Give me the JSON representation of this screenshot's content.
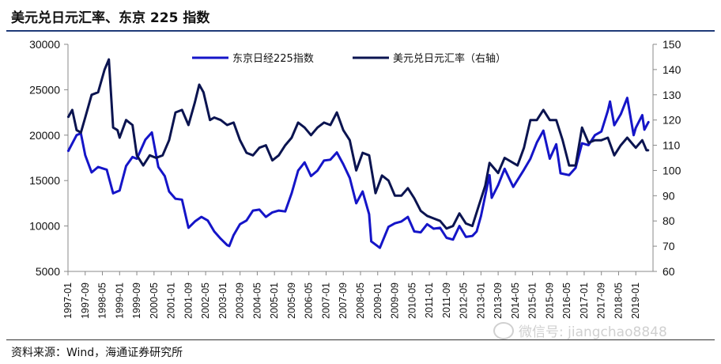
{
  "title": "美元兑日元汇率、东京 225 指数",
  "source": "资料来源：Wind，海通证券研究所",
  "watermark": "微信号: jiangchao8848",
  "colors": {
    "nikkei": "#1515c8",
    "usdjpy": "#0b1450",
    "rule": "#1f3a78"
  },
  "chart_data": {
    "type": "line",
    "title": "美元兑日元汇率、东京 225 指数",
    "x_ticks": [
      "1997-01",
      "1997-09",
      "1998-05",
      "1999-01",
      "1999-09",
      "2000-05",
      "2001-01",
      "2001-09",
      "2002-05",
      "2003-01",
      "2003-09",
      "2004-05",
      "2005-01",
      "2005-09",
      "2006-05",
      "2007-01",
      "2007-09",
      "2008-05",
      "2009-01",
      "2009-09",
      "2010-05",
      "2011-01",
      "2011-09",
      "2012-05",
      "2013-01",
      "2013-09",
      "2014-05",
      "2015-01",
      "2015-09",
      "2016-05",
      "2017-01",
      "2017-09",
      "2018-05",
      "2019-01"
    ],
    "y_left": {
      "ticks": [
        5000,
        10000,
        15000,
        20000,
        25000,
        30000
      ],
      "range": [
        5000,
        30000
      ]
    },
    "y_right": {
      "ticks": [
        60,
        70,
        80,
        90,
        100,
        110,
        120,
        130,
        140,
        150
      ],
      "range": [
        60,
        150
      ]
    },
    "legend_position": "top",
    "series": [
      {
        "name": "东京日经225指数",
        "axis": "left",
        "points": [
          [
            "1997-01",
            18200
          ],
          [
            "1997-05",
            20000
          ],
          [
            "1997-07",
            20200
          ],
          [
            "1997-09",
            17800
          ],
          [
            "1997-12",
            15900
          ],
          [
            "1998-03",
            16500
          ],
          [
            "1998-07",
            16200
          ],
          [
            "1998-10",
            13600
          ],
          [
            "1999-01",
            13900
          ],
          [
            "1999-04",
            16600
          ],
          [
            "1999-07",
            17600
          ],
          [
            "1999-09",
            17400
          ],
          [
            "2000-01",
            19500
          ],
          [
            "2000-04",
            20300
          ],
          [
            "2000-07",
            16500
          ],
          [
            "2000-10",
            15500
          ],
          [
            "2000-12",
            13800
          ],
          [
            "2001-03",
            13000
          ],
          [
            "2001-06",
            12900
          ],
          [
            "2001-09",
            9800
          ],
          [
            "2001-12",
            10500
          ],
          [
            "2002-03",
            11000
          ],
          [
            "2002-06",
            10600
          ],
          [
            "2002-09",
            9400
          ],
          [
            "2002-12",
            8600
          ],
          [
            "2003-03",
            7900
          ],
          [
            "2003-04",
            7800
          ],
          [
            "2003-06",
            9000
          ],
          [
            "2003-09",
            10200
          ],
          [
            "2003-12",
            10600
          ],
          [
            "2004-03",
            11700
          ],
          [
            "2004-06",
            11800
          ],
          [
            "2004-09",
            11000
          ],
          [
            "2004-12",
            11500
          ],
          [
            "2005-03",
            11700
          ],
          [
            "2005-06",
            11600
          ],
          [
            "2005-09",
            13600
          ],
          [
            "2005-12",
            16100
          ],
          [
            "2006-03",
            17000
          ],
          [
            "2006-06",
            15500
          ],
          [
            "2006-09",
            16100
          ],
          [
            "2006-12",
            17200
          ],
          [
            "2007-03",
            17300
          ],
          [
            "2007-06",
            18100
          ],
          [
            "2007-09",
            16800
          ],
          [
            "2007-12",
            15300
          ],
          [
            "2008-03",
            12500
          ],
          [
            "2008-06",
            13800
          ],
          [
            "2008-09",
            11300
          ],
          [
            "2008-10",
            8300
          ],
          [
            "2009-02",
            7600
          ],
          [
            "2009-06",
            9900
          ],
          [
            "2009-09",
            10300
          ],
          [
            "2009-12",
            10500
          ],
          [
            "2010-03",
            11000
          ],
          [
            "2010-06",
            9400
          ],
          [
            "2010-09",
            9300
          ],
          [
            "2010-12",
            10200
          ],
          [
            "2011-03",
            9700
          ],
          [
            "2011-06",
            9800
          ],
          [
            "2011-09",
            8700
          ],
          [
            "2011-12",
            8500
          ],
          [
            "2012-03",
            10000
          ],
          [
            "2012-06",
            8800
          ],
          [
            "2012-09",
            8900
          ],
          [
            "2012-11",
            9400
          ],
          [
            "2013-01",
            11100
          ],
          [
            "2013-05",
            15600
          ],
          [
            "2013-06",
            13100
          ],
          [
            "2013-09",
            14500
          ],
          [
            "2013-12",
            16300
          ],
          [
            "2014-04",
            14300
          ],
          [
            "2014-09",
            16200
          ],
          [
            "2014-12",
            17400
          ],
          [
            "2015-03",
            19200
          ],
          [
            "2015-06",
            20500
          ],
          [
            "2015-09",
            17400
          ],
          [
            "2015-12",
            19000
          ],
          [
            "2016-02",
            15800
          ],
          [
            "2016-06",
            15600
          ],
          [
            "2016-09",
            16400
          ],
          [
            "2016-12",
            19100
          ],
          [
            "2017-03",
            18900
          ],
          [
            "2017-06",
            20000
          ],
          [
            "2017-09",
            20400
          ],
          [
            "2017-12",
            22700
          ],
          [
            "2018-01",
            23700
          ],
          [
            "2018-03",
            21100
          ],
          [
            "2018-06",
            22300
          ],
          [
            "2018-09",
            24100
          ],
          [
            "2018-12",
            20000
          ],
          [
            "2019-01",
            20800
          ],
          [
            "2019-04",
            22200
          ],
          [
            "2019-05",
            20600
          ],
          [
            "2019-07",
            21500
          ]
        ]
      },
      {
        "name": "美元兑日元汇率（右轴）",
        "axis": "right",
        "points": [
          [
            "1997-01",
            121
          ],
          [
            "1997-03",
            124
          ],
          [
            "1997-05",
            116
          ],
          [
            "1997-07",
            115
          ],
          [
            "1997-09",
            121
          ],
          [
            "1997-12",
            130
          ],
          [
            "1998-03",
            131
          ],
          [
            "1998-06",
            140
          ],
          [
            "1998-08",
            144
          ],
          [
            "1998-10",
            117
          ],
          [
            "1998-12",
            116
          ],
          [
            "1999-01",
            113
          ],
          [
            "1999-04",
            120
          ],
          [
            "1999-07",
            118
          ],
          [
            "1999-09",
            106
          ],
          [
            "1999-12",
            102
          ],
          [
            "2000-03",
            106
          ],
          [
            "2000-06",
            105
          ],
          [
            "2000-09",
            106
          ],
          [
            "2000-12",
            112
          ],
          [
            "2001-03",
            123
          ],
          [
            "2001-06",
            124
          ],
          [
            "2001-09",
            118
          ],
          [
            "2001-12",
            127
          ],
          [
            "2002-02",
            134
          ],
          [
            "2002-04",
            131
          ],
          [
            "2002-07",
            120
          ],
          [
            "2002-09",
            121
          ],
          [
            "2002-12",
            120
          ],
          [
            "2003-03",
            118
          ],
          [
            "2003-06",
            119
          ],
          [
            "2003-09",
            112
          ],
          [
            "2003-12",
            107
          ],
          [
            "2004-03",
            106
          ],
          [
            "2004-06",
            109
          ],
          [
            "2004-09",
            110
          ],
          [
            "2004-12",
            104
          ],
          [
            "2005-03",
            106
          ],
          [
            "2005-06",
            110
          ],
          [
            "2005-09",
            113
          ],
          [
            "2005-12",
            119
          ],
          [
            "2006-03",
            117
          ],
          [
            "2006-06",
            114
          ],
          [
            "2006-09",
            117
          ],
          [
            "2006-12",
            119
          ],
          [
            "2007-03",
            118
          ],
          [
            "2007-06",
            123
          ],
          [
            "2007-09",
            116
          ],
          [
            "2007-12",
            112
          ],
          [
            "2008-03",
            100
          ],
          [
            "2008-06",
            107
          ],
          [
            "2008-09",
            106
          ],
          [
            "2008-12",
            91
          ],
          [
            "2009-03",
            98
          ],
          [
            "2009-06",
            96
          ],
          [
            "2009-09",
            90
          ],
          [
            "2009-12",
            90
          ],
          [
            "2010-03",
            93
          ],
          [
            "2010-06",
            89
          ],
          [
            "2010-09",
            84
          ],
          [
            "2010-12",
            82
          ],
          [
            "2011-03",
            81
          ],
          [
            "2011-06",
            80
          ],
          [
            "2011-09",
            77
          ],
          [
            "2011-12",
            78
          ],
          [
            "2012-03",
            83
          ],
          [
            "2012-06",
            79
          ],
          [
            "2012-09",
            78
          ],
          [
            "2012-12",
            86
          ],
          [
            "2013-03",
            94
          ],
          [
            "2013-05",
            103
          ],
          [
            "2013-09",
            99
          ],
          [
            "2013-12",
            105
          ],
          [
            "2014-06",
            102
          ],
          [
            "2014-09",
            109
          ],
          [
            "2014-12",
            120
          ],
          [
            "2015-03",
            120
          ],
          [
            "2015-06",
            124
          ],
          [
            "2015-09",
            120
          ],
          [
            "2015-12",
            120
          ],
          [
            "2016-03",
            112
          ],
          [
            "2016-06",
            102
          ],
          [
            "2016-09",
            102
          ],
          [
            "2016-12",
            117
          ],
          [
            "2017-03",
            111
          ],
          [
            "2017-06",
            112
          ],
          [
            "2017-09",
            112
          ],
          [
            "2017-12",
            113
          ],
          [
            "2018-03",
            106
          ],
          [
            "2018-06",
            110
          ],
          [
            "2018-09",
            113
          ],
          [
            "2018-12",
            110
          ],
          [
            "2019-01",
            109
          ],
          [
            "2019-04",
            112
          ],
          [
            "2019-06",
            108
          ],
          [
            "2019-07",
            108
          ]
        ]
      }
    ]
  }
}
